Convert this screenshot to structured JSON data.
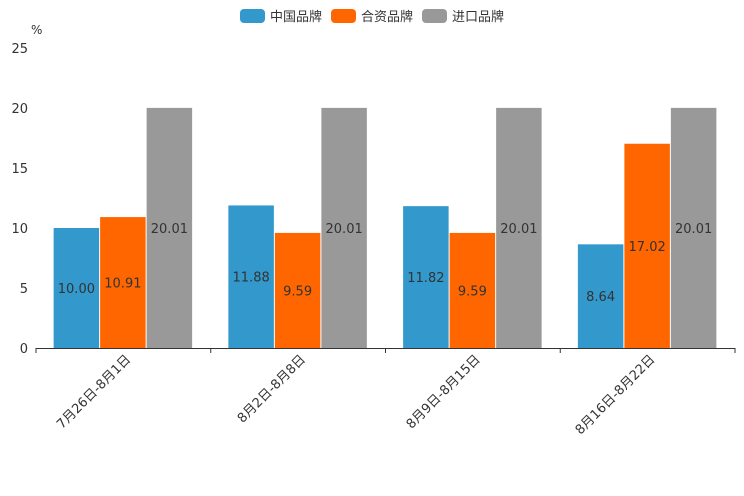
{
  "chart_data": {
    "type": "bar",
    "title": "",
    "xlabel": "",
    "ylabel": "%",
    "ylim": [
      0,
      25
    ],
    "yticks": [
      0,
      5,
      10,
      15,
      20,
      25
    ],
    "categories": [
      "7月26日-8月1日",
      "8月2日-8月8日",
      "8月9日-8月15日",
      "8月16日-8月22日"
    ],
    "series": [
      {
        "name": "中国品牌",
        "color": "#3399cc",
        "values": [
          10.0,
          11.88,
          11.82,
          8.64
        ],
        "labels": [
          "10.00",
          "11.88",
          "11.82",
          "8.64"
        ]
      },
      {
        "name": "合资品牌",
        "color": "#ff6600",
        "values": [
          10.91,
          9.59,
          9.59,
          17.02
        ],
        "labels": [
          "10.91",
          "9.59",
          "9.59",
          "17.02"
        ]
      },
      {
        "name": "进口品牌",
        "color": "#999999",
        "values": [
          20.01,
          20.01,
          20.01,
          20.01
        ],
        "labels": [
          "20.01",
          "20.01",
          "20.01",
          "20.01"
        ]
      }
    ],
    "legend_position": "top-center",
    "grid": false
  }
}
